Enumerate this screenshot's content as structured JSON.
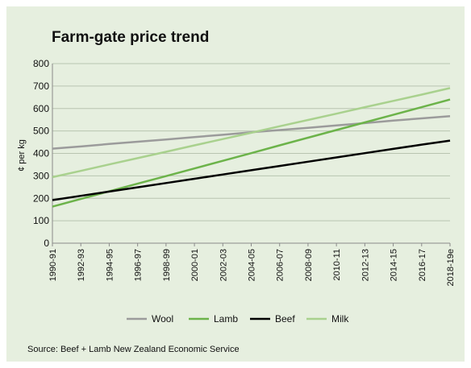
{
  "chart_data": {
    "type": "line",
    "title": "Farm-gate price trend",
    "ylabel": "¢ per kg",
    "xlabel": "",
    "ylim": [
      0,
      800
    ],
    "yticks": [
      0,
      100,
      200,
      300,
      400,
      500,
      600,
      700,
      800
    ],
    "categories": [
      "1990-91",
      "1992-93",
      "1994-95",
      "1996-97",
      "1998-99",
      "2000-01",
      "2002-03",
      "2004-05",
      "2006-07",
      "2008-09",
      "2010-11",
      "2012-13",
      "2014-15",
      "2016-17",
      "2018-19e"
    ],
    "grid": true,
    "legend_position": "bottom",
    "series": [
      {
        "name": "Wool",
        "color": "#9b9b9b",
        "values": [
          421,
          431,
          442,
          452,
          462,
          473,
          483,
          494,
          504,
          514,
          525,
          535,
          546,
          556,
          566
        ]
      },
      {
        "name": "Lamb",
        "color": "#6cb34a",
        "values": [
          163,
          197,
          231,
          265,
          299,
          333,
          367,
          401,
          436,
          470,
          504,
          538,
          572,
          606,
          640
        ]
      },
      {
        "name": "Beef",
        "color": "#000000",
        "values": [
          192,
          211,
          230,
          249,
          268,
          287,
          306,
          325,
          344,
          363,
          382,
          401,
          420,
          439,
          457
        ]
      },
      {
        "name": "Milk",
        "color": "#a9d18e",
        "values": [
          294,
          322,
          351,
          379,
          407,
          436,
          464,
          492,
          521,
          549,
          577,
          606,
          634,
          662,
          691
        ]
      }
    ],
    "source": "Source: Beef + Lamb New Zealand Economic Service"
  }
}
